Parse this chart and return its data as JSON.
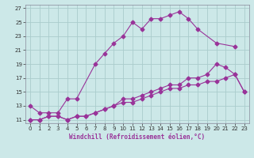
{
  "background_color": "#cce8e8",
  "plot_bg_color": "#cce8e8",
  "grid_color": "#aacccc",
  "line_color": "#993399",
  "separator_color": "#7777aa",
  "xlim": [
    -0.5,
    23.5
  ],
  "ylim": [
    10.5,
    27.5
  ],
  "yticks": [
    11,
    13,
    15,
    17,
    19,
    21,
    23,
    25,
    27
  ],
  "xticks": [
    0,
    1,
    2,
    3,
    4,
    5,
    6,
    7,
    8,
    9,
    10,
    11,
    12,
    13,
    14,
    15,
    16,
    17,
    18,
    19,
    20,
    21,
    22,
    23
  ],
  "xlabel": "Windchill (Refroidissement éolien,°C)",
  "line1_x": [
    0,
    1,
    2,
    3,
    4,
    5,
    7,
    8,
    9,
    10,
    11,
    12,
    13,
    14,
    15,
    16,
    17,
    18,
    20,
    22
  ],
  "line1_y": [
    13,
    12,
    12,
    12,
    14,
    14,
    19,
    20.5,
    22,
    23,
    25,
    24,
    25.5,
    25.5,
    26,
    26.5,
    25.5,
    24,
    22,
    21.5
  ],
  "line2_x": [
    0,
    1,
    2,
    3,
    4,
    5,
    6,
    7,
    8,
    9,
    10,
    11,
    12,
    13,
    14,
    15,
    16,
    17,
    18,
    19,
    20,
    21,
    22,
    23
  ],
  "line2_y": [
    11,
    11,
    11.5,
    11.5,
    11,
    11.5,
    11.5,
    12,
    12.5,
    13,
    14,
    14,
    14.5,
    15,
    15.5,
    16,
    16,
    17,
    17,
    17.5,
    19,
    18.5,
    17.5,
    15
  ],
  "line3_x": [
    0,
    1,
    2,
    3,
    4,
    5,
    6,
    7,
    8,
    9,
    10,
    11,
    12,
    13,
    14,
    15,
    16,
    17,
    18,
    19,
    20,
    21,
    22,
    23
  ],
  "line3_y": [
    11,
    11,
    11.5,
    11.5,
    11,
    11.5,
    11.5,
    12,
    12.5,
    13,
    13.5,
    13.5,
    14,
    14.5,
    15,
    15.5,
    15.5,
    16,
    16,
    16.5,
    16.5,
    17,
    17.5,
    15
  ]
}
